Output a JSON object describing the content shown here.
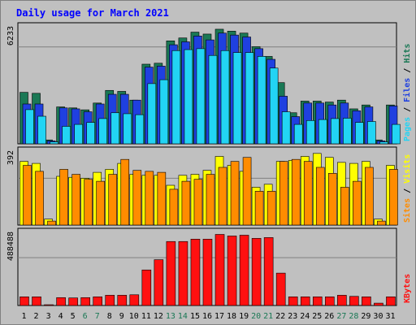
{
  "chart_data": {
    "type": "bar",
    "title": "Daily usage for March 2021",
    "categories": [
      "1",
      "2",
      "3",
      "4",
      "5",
      "6",
      "7",
      "8",
      "9",
      "10",
      "11",
      "12",
      "13",
      "14",
      "15",
      "16",
      "17",
      "18",
      "19",
      "20",
      "21",
      "22",
      "23",
      "24",
      "25",
      "26",
      "27",
      "28",
      "29",
      "30",
      "31"
    ],
    "weekend_days": [
      "6",
      "7",
      "13",
      "14",
      "20",
      "21",
      "27",
      "28"
    ],
    "panels": [
      {
        "name": "hits-files-pages",
        "max_label": "6233",
        "ylim": [
          0,
          6233
        ],
        "legend": [
          "Pages",
          "Files",
          "Hits"
        ],
        "series": [
          {
            "name": "Hits",
            "color": "#1a7855",
            "values": [
              2650,
              2600,
              200,
              1900,
              1850,
              1750,
              2100,
              2750,
              2700,
              2250,
              4100,
              4150,
              5300,
              5450,
              5750,
              5650,
              5900,
              5800,
              5700,
              5000,
              4500,
              3150,
              1600,
              2200,
              2200,
              2150,
              2250,
              1800,
              2000,
              200,
              2000
            ]
          },
          {
            "name": "Files",
            "color": "#1f40e0",
            "values": [
              2050,
              2050,
              150,
              1850,
              1800,
              1650,
              2050,
              2550,
              2550,
              2250,
              3950,
              4000,
              5100,
              5250,
              5550,
              5350,
              5700,
              5600,
              5500,
              4900,
              4350,
              2450,
              1400,
              2100,
              2100,
              2000,
              2100,
              1700,
              1900,
              150,
              1950
            ]
          },
          {
            "name": "Pages",
            "color": "#22d4f4",
            "values": [
              1760,
              1420,
              100,
              900,
              1000,
              1100,
              1300,
              1600,
              1550,
              1500,
              3100,
              3300,
              4800,
              4850,
              4900,
              4550,
              4800,
              4700,
              4700,
              4500,
              3900,
              1650,
              1000,
              1200,
              1250,
              1300,
              1320,
              1100,
              1150,
              100,
              1000
            ]
          }
        ]
      },
      {
        "name": "visits-sites",
        "max_label": "392",
        "ylim": [
          0,
          392
        ],
        "legend": [
          "Sites",
          "Visits"
        ],
        "series": [
          {
            "name": "Visits",
            "color": "#ffff00",
            "values": [
              320,
              310,
              30,
              245,
              240,
              235,
              265,
              280,
              310,
              255,
              250,
              250,
              200,
              250,
              255,
              275,
              345,
              300,
              270,
              190,
              205,
              320,
              325,
              345,
              360,
              340,
              315,
              310,
              320,
              30,
              300
            ]
          },
          {
            "name": "Sites",
            "color": "#ff8c00",
            "values": [
              300,
              270,
              20,
              280,
              255,
              230,
              220,
              255,
              330,
              275,
              270,
              265,
              180,
              220,
              230,
              255,
              290,
              320,
              340,
              170,
              170,
              320,
              330,
              320,
              290,
              260,
              190,
              220,
              290,
              20,
              280
            ]
          }
        ]
      },
      {
        "name": "kbytes",
        "max_label": "488488",
        "ylim": [
          0,
          488488
        ],
        "legend": [
          "KBytes"
        ],
        "series": [
          {
            "name": "KBytes",
            "color": "#ff1010",
            "values": [
              55000,
              55000,
              5000,
              50000,
              48000,
              50000,
              55000,
              65000,
              65000,
              68000,
              225000,
              290000,
              405000,
              405000,
              420000,
              420000,
              450000,
              440000,
              445000,
              425000,
              430000,
              205000,
              55000,
              55000,
              55000,
              55000,
              65000,
              58000,
              55000,
              15000,
              55000
            ]
          }
        ]
      }
    ]
  }
}
